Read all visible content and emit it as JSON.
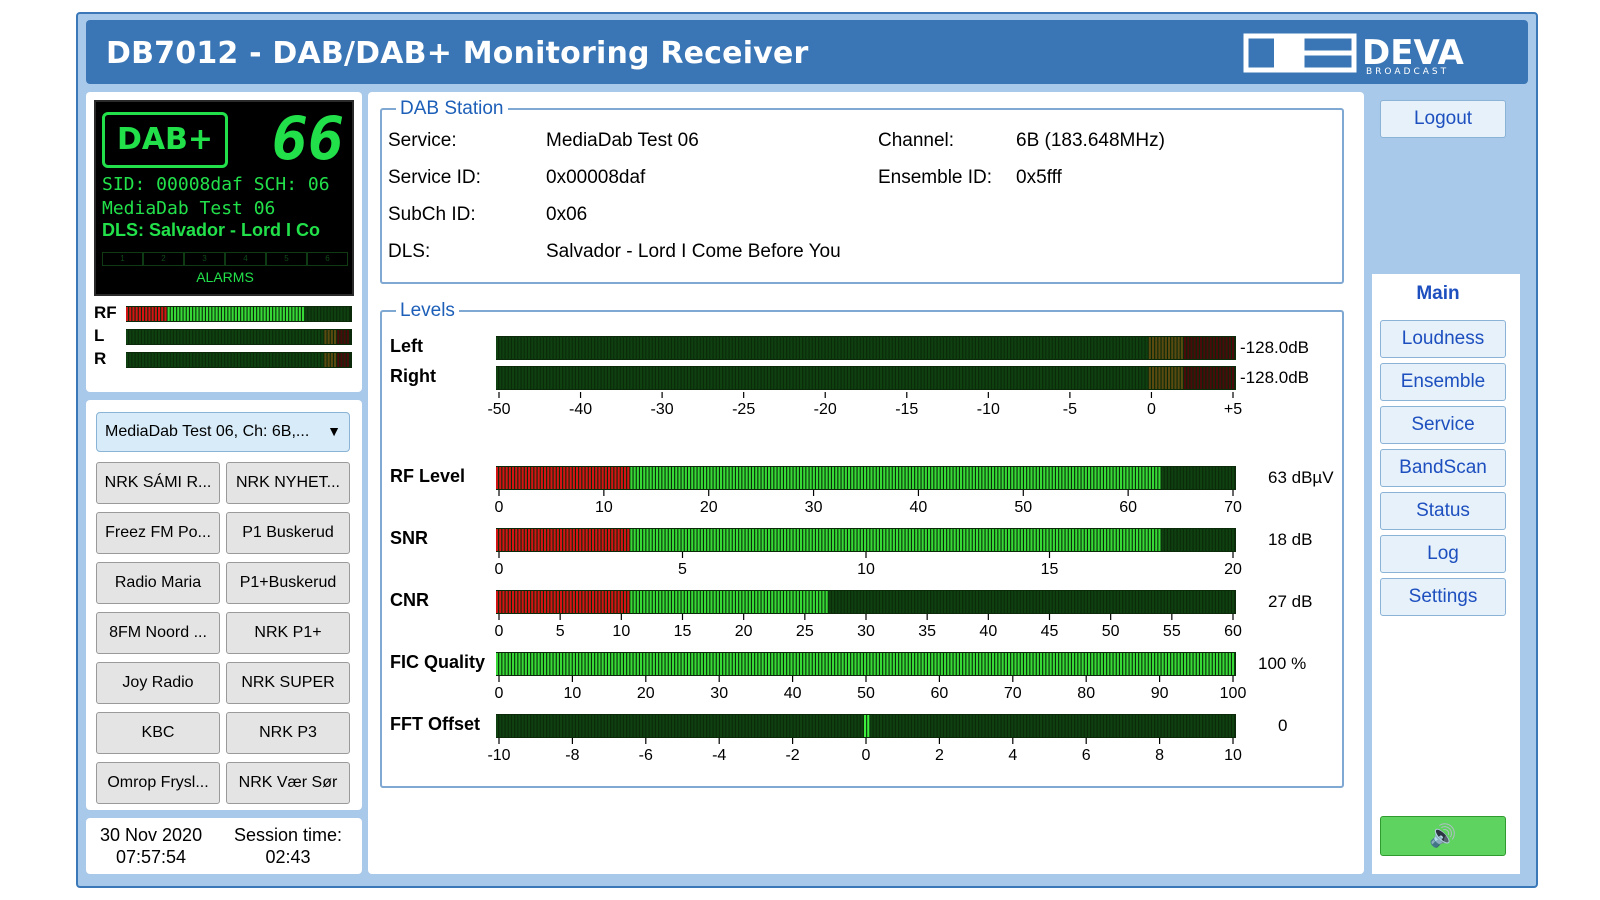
{
  "header": {
    "title": "DB7012 - DAB/DAB+ Monitoring Receiver",
    "logo_text": "DEVA",
    "logo_sub": "BROADCAST"
  },
  "lcd": {
    "dab_logo": "DAB+",
    "channel_number": "66",
    "line1": "SID: 00008daf  SCH: 06",
    "line2": "MediaDab Test 06",
    "line3": "DLS: Salvador - Lord I Co",
    "alarm_cells": [
      "1",
      "2",
      "3",
      "4",
      "5",
      "6"
    ],
    "alarms_label": "ALARMS"
  },
  "mini_meters": [
    {
      "label": "RF",
      "level": 0.8
    },
    {
      "label": "L",
      "level": 0.0
    },
    {
      "label": "R",
      "level": 0.0
    }
  ],
  "station_select": {
    "value": "MediaDab Test 06, Ch: 6B,..."
  },
  "station_buttons": [
    "NRK SÁMI R...",
    "NRK NYHET...",
    "Freez FM Po...",
    "P1 Buskerud",
    "Radio Maria",
    "P1+Buskerud",
    "8FM Noord ...",
    "NRK P1+",
    "Joy Radio",
    "NRK SUPER",
    "KBC",
    "NRK P3",
    "Omrop Frysl...",
    "NRK Vær Sør"
  ],
  "datetime": {
    "date": "30 Nov 2020",
    "time": "07:57:54",
    "session_label": "Session time:",
    "session": "02:43"
  },
  "dab_station": {
    "legend": "DAB Station",
    "service_label": "Service:",
    "service": "MediaDab Test 06",
    "service_id_label": "Service ID:",
    "service_id": "0x00008daf",
    "subch_label": "SubCh ID:",
    "subch": "0x06",
    "dls_label": "DLS:",
    "dls": "Salvador - Lord I Come Before You",
    "channel_label": "Channel:",
    "channel": "6B (183.648MHz)",
    "ensemble_label": "Ensemble ID:",
    "ensemble": "0x5fff"
  },
  "levels": {
    "legend": "Levels",
    "left_label": "Left",
    "left_value": "-128.0dB",
    "left_level": 0,
    "right_label": "Right",
    "right_value": "-128.0dB",
    "right_level": 0,
    "audio_ticks": [
      "-50",
      "-40",
      "-30",
      "-25",
      "-20",
      "-15",
      "-10",
      "-5",
      "0",
      "+5"
    ],
    "rf_label": "RF Level",
    "rf_value": "63 dBµV",
    "rf_level": 63,
    "rf_max": 70,
    "rf_ticks": [
      "0",
      "10",
      "20",
      "30",
      "40",
      "50",
      "60",
      "70"
    ],
    "snr_label": "SNR",
    "snr_value": "18 dB",
    "snr_level": 18,
    "snr_max": 20,
    "snr_ticks": [
      "0",
      "5",
      "10",
      "15",
      "20"
    ],
    "cnr_label": "CNR",
    "cnr_value": "27 dB",
    "cnr_level": 27,
    "cnr_max": 60,
    "cnr_ticks": [
      "0",
      "5",
      "10",
      "15",
      "20",
      "25",
      "30",
      "35",
      "40",
      "45",
      "50",
      "55",
      "60"
    ],
    "fic_label": "FIC Quality",
    "fic_value": "100 %",
    "fic_level": 100,
    "fic_max": 100,
    "fic_ticks": [
      "0",
      "10",
      "20",
      "30",
      "40",
      "50",
      "60",
      "70",
      "80",
      "90",
      "100"
    ],
    "fft_label": "FFT Offset",
    "fft_value": "0",
    "fft_level": 0,
    "fft_ticks": [
      "-10",
      "-8",
      "-6",
      "-4",
      "-2",
      "0",
      "2",
      "4",
      "6",
      "8",
      "10"
    ]
  },
  "nav": {
    "logout": "Logout",
    "active_tab": "Main",
    "items": [
      "Loudness",
      "Ensemble",
      "Service",
      "BandScan",
      "Status",
      "Log",
      "Settings"
    ]
  },
  "colors": {
    "accent": "#3a76b6",
    "lcd_green": "#22e04a",
    "bar_red": "#d01010",
    "bar_green": "#2fd12f"
  }
}
